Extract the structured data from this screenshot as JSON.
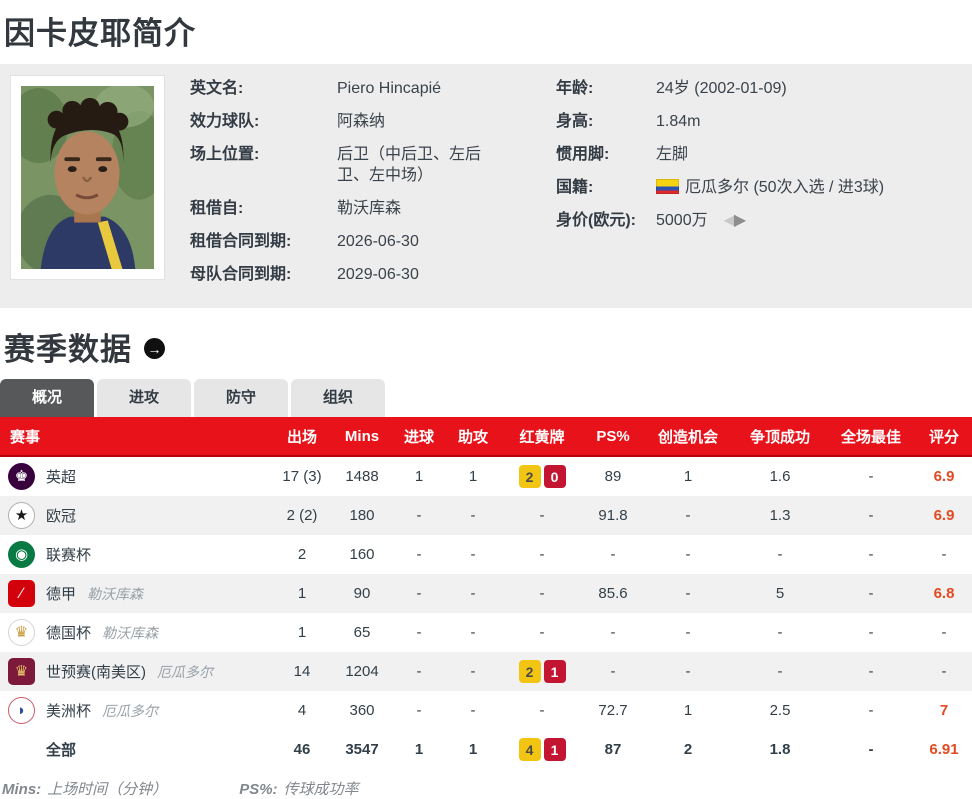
{
  "page": {
    "title": "因卡皮耶简介",
    "section_title": "赛季数据"
  },
  "profile": {
    "left_fields": [
      {
        "label": "英文名:",
        "value": "Piero Hincapié"
      },
      {
        "label": "效力球队:",
        "value": "阿森纳"
      },
      {
        "label": "场上位置:",
        "value": "后卫（中后卫、左后卫、左中场）"
      },
      {
        "label": "租借自:",
        "value": "勒沃库森"
      },
      {
        "label": "租借合同到期:",
        "value": "2026-06-30"
      },
      {
        "label": "母队合同到期:",
        "value": "2029-06-30"
      }
    ],
    "right_fields": [
      {
        "label": "年龄:",
        "value": "24岁 (2002-01-09)"
      },
      {
        "label": "身高:",
        "value": "1.84m"
      },
      {
        "label": "惯用脚:",
        "value": "左脚"
      },
      {
        "label": "国籍:",
        "value": "厄瓜多尔 (50次入选 / 进3球)",
        "flag": "ecuador-flag-icon"
      },
      {
        "label": "身价(欧元):",
        "value": "5000万",
        "arrows": true
      }
    ],
    "arrow_left": "◀",
    "arrow_right": "▶"
  },
  "section_arrow_glyph": "→",
  "tabs": [
    {
      "label": "概况",
      "active": true
    },
    {
      "label": "进攻",
      "active": false
    },
    {
      "label": "防守",
      "active": false
    },
    {
      "label": "组织",
      "active": false
    }
  ],
  "stats": {
    "headers": [
      "赛事",
      "出场",
      "Mins",
      "进球",
      "助攻",
      "红黄牌",
      "PS%",
      "创造机会",
      "争顶成功",
      "全场最佳",
      "评分"
    ],
    "rows": [
      {
        "icon": {
          "name": "premier-league-icon",
          "bg": "#38003c",
          "fg": "#ffffff",
          "glyph": "♚",
          "shape": "round"
        },
        "competition": "英超",
        "team": "",
        "apps": "17 (3)",
        "mins": "1488",
        "goals": "1",
        "assists": "1",
        "cards": {
          "yellow": "2",
          "red": "0"
        },
        "ps": "89",
        "chances": "1",
        "aerial": "1.6",
        "motm": "-",
        "rating": "6.9",
        "total": false
      },
      {
        "icon": {
          "name": "champions-league-icon",
          "bg": "#ffffff",
          "fg": "#1a1a1a",
          "glyph": "★",
          "shape": "round",
          "border": "#b0b0b0"
        },
        "competition": "欧冠",
        "team": "",
        "apps": "2 (2)",
        "mins": "180",
        "goals": "-",
        "assists": "-",
        "cards": null,
        "ps": "91.8",
        "chances": "-",
        "aerial": "1.3",
        "motm": "-",
        "rating": "6.9",
        "total": false
      },
      {
        "icon": {
          "name": "league-cup-icon",
          "bg": "#0a7a44",
          "fg": "#ffffff",
          "glyph": "◉",
          "shape": "round"
        },
        "competition": "联赛杯",
        "team": "",
        "apps": "2",
        "mins": "160",
        "goals": "-",
        "assists": "-",
        "cards": null,
        "ps": "-",
        "chances": "-",
        "aerial": "-",
        "motm": "-",
        "rating": "-",
        "total": false
      },
      {
        "icon": {
          "name": "bundesliga-icon",
          "bg": "#d3010c",
          "fg": "#ffffff",
          "glyph": "∕",
          "shape": "square"
        },
        "competition": "德甲",
        "team": "勒沃库森",
        "apps": "1",
        "mins": "90",
        "goals": "-",
        "assists": "-",
        "cards": null,
        "ps": "85.6",
        "chances": "-",
        "aerial": "5",
        "motm": "-",
        "rating": "6.8",
        "total": false
      },
      {
        "icon": {
          "name": "dfb-pokal-icon",
          "bg": "#ffffff",
          "fg": "#c79a3b",
          "glyph": "♛",
          "shape": "round",
          "border": "#d5d5d5"
        },
        "competition": "德国杯",
        "team": "勒沃库森",
        "apps": "1",
        "mins": "65",
        "goals": "-",
        "assists": "-",
        "cards": null,
        "ps": "-",
        "chances": "-",
        "aerial": "-",
        "motm": "-",
        "rating": "-",
        "total": false
      },
      {
        "icon": {
          "name": "world-cup-qualifier-icon",
          "bg": "#7d1a3c",
          "fg": "#e9c46a",
          "glyph": "♛",
          "shape": "square"
        },
        "competition": "世预赛(南美区)",
        "team": "厄瓜多尔",
        "apps": "14",
        "mins": "1204",
        "goals": "-",
        "assists": "-",
        "cards": {
          "yellow": "2",
          "red": "1"
        },
        "ps": "-",
        "chances": "-",
        "aerial": "-",
        "motm": "-",
        "rating": "-",
        "total": false
      },
      {
        "icon": {
          "name": "copa-america-icon",
          "bg": "#ffffff",
          "fg": "#2b4ea0",
          "glyph": "◗",
          "shape": "round",
          "border": "#c95a6a"
        },
        "competition": "美洲杯",
        "team": "厄瓜多尔",
        "apps": "4",
        "mins": "360",
        "goals": "-",
        "assists": "-",
        "cards": null,
        "ps": "72.7",
        "chances": "1",
        "aerial": "2.5",
        "motm": "-",
        "rating": "7",
        "total": false
      },
      {
        "icon": null,
        "competition": "全部",
        "team": "",
        "apps": "46",
        "mins": "3547",
        "goals": "1",
        "assists": "1",
        "cards": {
          "yellow": "4",
          "red": "1"
        },
        "ps": "87",
        "chances": "2",
        "aerial": "1.8",
        "motm": "-",
        "rating": "6.91",
        "total": true
      }
    ],
    "footnotes": [
      {
        "term": "Mins:",
        "desc": "上场时间（分钟）"
      },
      {
        "term": "PS%:",
        "desc": "传球成功率"
      }
    ]
  },
  "colors": {
    "header_red": "#e8121a",
    "rating_orange": "#e34a21",
    "yellow_card": "#f3c513",
    "red_card": "#c31432",
    "tab_active": "#57585a",
    "section_bg": "#ededed"
  }
}
